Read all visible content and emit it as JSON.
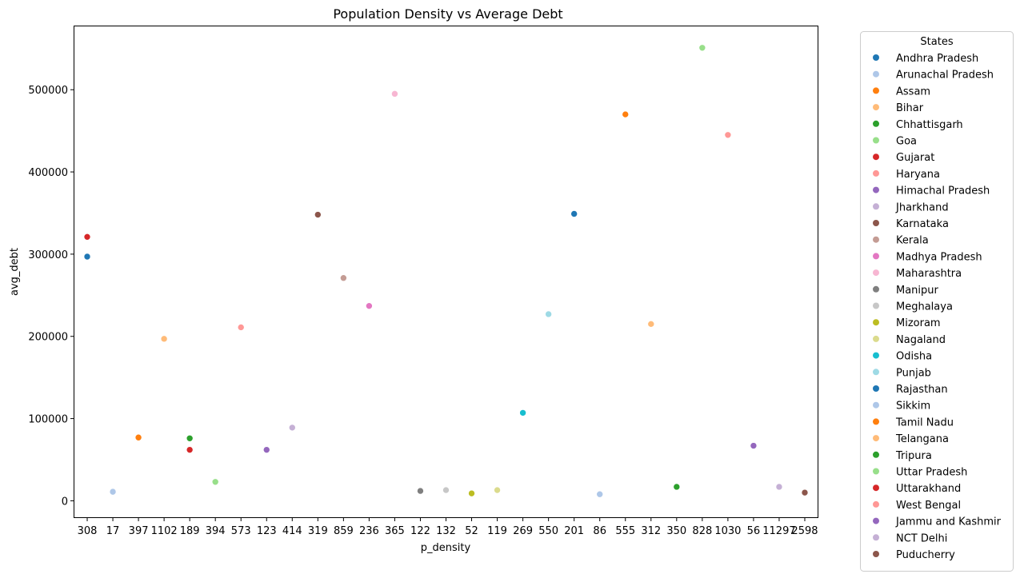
{
  "chart_data": {
    "type": "scatter",
    "title": "Population Density vs Average Debt",
    "xlabel": "p_density",
    "ylabel": "avg_debt",
    "x_axis_kind": "categorical",
    "x_categories": [
      "308",
      "17",
      "397",
      "1102",
      "189",
      "394",
      "573",
      "123",
      "414",
      "319",
      "859",
      "236",
      "365",
      "122",
      "132",
      "52",
      "119",
      "269",
      "550",
      "201",
      "86",
      "555",
      "312",
      "350",
      "828",
      "1030",
      "56",
      "11297",
      "2598"
    ],
    "ylim": [
      -20000,
      578000
    ],
    "yticks": [
      0,
      100000,
      200000,
      300000,
      400000,
      500000
    ],
    "grid": false,
    "legend_title": "States",
    "legend_position": "outside right",
    "points": [
      {
        "state": "Andhra Pradesh",
        "x": "308",
        "y": 297000,
        "color": "#1f77b4"
      },
      {
        "state": "Arunachal Pradesh",
        "x": "17",
        "y": 11000,
        "color": "#aec7e8"
      },
      {
        "state": "Assam",
        "x": "397",
        "y": 77000,
        "color": "#ff7f0e"
      },
      {
        "state": "Bihar",
        "x": "1102",
        "y": 197000,
        "color": "#ffbb78"
      },
      {
        "state": "Chhattisgarh",
        "x": "189",
        "y": 76000,
        "color": "#2ca02c"
      },
      {
        "state": "Goa",
        "x": "394",
        "y": 23000,
        "color": "#98df8a"
      },
      {
        "state": "Gujarat",
        "x": "308",
        "y": 321000,
        "color": "#d62728"
      },
      {
        "state": "Haryana",
        "x": "573",
        "y": 211000,
        "color": "#ff9896"
      },
      {
        "state": "Himachal Pradesh",
        "x": "123",
        "y": 62000,
        "color": "#9467bd"
      },
      {
        "state": "Jharkhand",
        "x": "414",
        "y": 89000,
        "color": "#c5b0d5"
      },
      {
        "state": "Karnataka",
        "x": "319",
        "y": 348000,
        "color": "#8c564b"
      },
      {
        "state": "Kerala",
        "x": "859",
        "y": 271000,
        "color": "#c49c94"
      },
      {
        "state": "Madhya Pradesh",
        "x": "236",
        "y": 237000,
        "color": "#e377c2"
      },
      {
        "state": "Maharashtra",
        "x": "365",
        "y": 495000,
        "color": "#f7b6d2"
      },
      {
        "state": "Manipur",
        "x": "122",
        "y": 12000,
        "color": "#7f7f7f"
      },
      {
        "state": "Meghalaya",
        "x": "132",
        "y": 13000,
        "color": "#c7c7c7"
      },
      {
        "state": "Mizoram",
        "x": "52",
        "y": 9000,
        "color": "#bcbd22"
      },
      {
        "state": "Nagaland",
        "x": "119",
        "y": 13000,
        "color": "#dbdb8d"
      },
      {
        "state": "Odisha",
        "x": "269",
        "y": 107000,
        "color": "#17becf"
      },
      {
        "state": "Punjab",
        "x": "550",
        "y": 227000,
        "color": "#9edae5"
      },
      {
        "state": "Rajasthan",
        "x": "201",
        "y": 349000,
        "color": "#1f77b4"
      },
      {
        "state": "Sikkim",
        "x": "86",
        "y": 8000,
        "color": "#aec7e8"
      },
      {
        "state": "Tamil Nadu",
        "x": "555",
        "y": 470000,
        "color": "#ff7f0e"
      },
      {
        "state": "Telangana",
        "x": "312",
        "y": 215000,
        "color": "#ffbb78"
      },
      {
        "state": "Tripura",
        "x": "350",
        "y": 17000,
        "color": "#2ca02c"
      },
      {
        "state": "Uttar Pradesh",
        "x": "828",
        "y": 551000,
        "color": "#98df8a"
      },
      {
        "state": "Uttarakhand",
        "x": "189",
        "y": 62000,
        "color": "#d62728"
      },
      {
        "state": "West Bengal",
        "x": "1030",
        "y": 445000,
        "color": "#ff9896"
      },
      {
        "state": "Jammu and Kashmir",
        "x": "56",
        "y": 67000,
        "color": "#9467bd"
      },
      {
        "state": "NCT Delhi",
        "x": "11297",
        "y": 17000,
        "color": "#c5b0d5"
      },
      {
        "state": "Puducherry",
        "x": "2598",
        "y": 10000,
        "color": "#8c564b"
      }
    ]
  }
}
